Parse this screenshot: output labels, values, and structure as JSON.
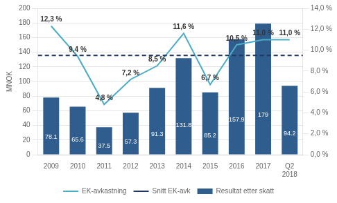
{
  "chart_data": {
    "type": "bar",
    "categories": [
      "2009",
      "2010",
      "2011",
      "2012",
      "2013",
      "2014",
      "2015",
      "2016",
      "2017",
      "Q2\n2018"
    ],
    "series": [
      {
        "name": "Resultat etter skatt",
        "type": "bar",
        "color": "#2e5d8e",
        "values": [
          78.1,
          65.6,
          37.5,
          57.3,
          91.3,
          131.8,
          85.2,
          157.9,
          179.0,
          94.2
        ]
      },
      {
        "name": "EK-avkastning",
        "type": "line",
        "color": "#4bacc6",
        "axis": "y2",
        "marker": "none",
        "values": [
          12.3,
          9.4,
          4.8,
          7.2,
          8.5,
          11.6,
          6.7,
          10.5,
          11.0,
          11.0
        ],
        "value_labels": [
          "12,3 %",
          "9,4 %",
          "4,8 %",
          "7,2 %",
          "8,5 %",
          "11,6 %",
          "6,7 %",
          "10,5 %",
          "11,0 %",
          "11,0 %"
        ]
      },
      {
        "name": "Snitt EK-avk",
        "type": "hline",
        "color": "#1f3864",
        "axis": "y2",
        "line_style": "dashed",
        "value": 9.5
      }
    ],
    "ylabel": "MNOK",
    "ylim": [
      0,
      200
    ],
    "yticks": [
      0,
      20,
      40,
      60,
      80,
      100,
      120,
      140,
      160,
      180,
      200
    ],
    "y2lim": [
      0,
      14.0
    ],
    "y2ticks": [
      {
        "value": 0.0,
        "label": "0,0 %"
      },
      {
        "value": 2.0,
        "label": "2,0 %"
      },
      {
        "value": 4.0,
        "label": "4,0 %"
      },
      {
        "value": 6.0,
        "label": "6,0 %"
      },
      {
        "value": 8.0,
        "label": "8,0 %"
      },
      {
        "value": 10.0,
        "label": "10,0 %"
      },
      {
        "value": 12.0,
        "label": "12,0 %"
      },
      {
        "value": 14.0,
        "label": "14,0 %"
      }
    ],
    "grid": true,
    "data_labels": true,
    "legend": "bottom"
  }
}
